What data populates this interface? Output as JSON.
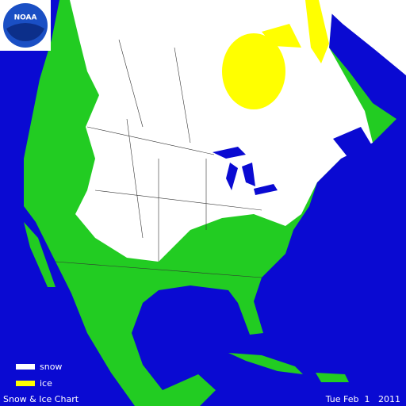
{
  "logo": {
    "label": "NOAA"
  },
  "legend": {
    "items": [
      {
        "label": "snow",
        "color": "#ffffff"
      },
      {
        "label": "ice",
        "color": "#ffff00"
      }
    ]
  },
  "footer": {
    "title": "Snow & Ice Chart",
    "date": "Tue Feb  1   2011"
  }
}
